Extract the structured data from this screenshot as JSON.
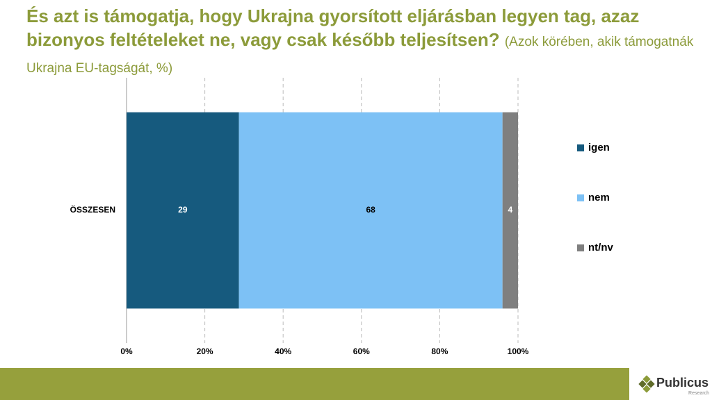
{
  "chart_data": {
    "type": "bar",
    "stacked": "percent",
    "orientation": "horizontal",
    "title": "És azt is támogatja, hogy Ukrajna gyorsított eljárásban legyen tag, azaz bizonyos feltételeket ne, vagy csak később teljesítsen?",
    "subtitle": "(Azok körében, akik támogatnák Ukrajna EU-tagságát, %)",
    "categories": [
      "ÖSSZESEN"
    ],
    "series": [
      {
        "name": "igen",
        "color": "#165a7e",
        "values": [
          29
        ]
      },
      {
        "name": "nem",
        "color": "#7dc1f5",
        "values": [
          68
        ]
      },
      {
        "name": "nt/nv",
        "color": "#7f7f7f",
        "values": [
          4
        ]
      }
    ],
    "xlim": [
      0,
      100
    ],
    "xticks": [
      {
        "value": 0,
        "label": "0%"
      },
      {
        "value": 20,
        "label": "20%"
      },
      {
        "value": 40,
        "label": "40%"
      },
      {
        "value": 60,
        "label": "60%"
      },
      {
        "value": 80,
        "label": "80%"
      },
      {
        "value": 100,
        "label": "100%"
      }
    ],
    "grid": true,
    "legend": "right"
  },
  "footer": {
    "brand": "Publicus",
    "brand_sub": "Research"
  }
}
